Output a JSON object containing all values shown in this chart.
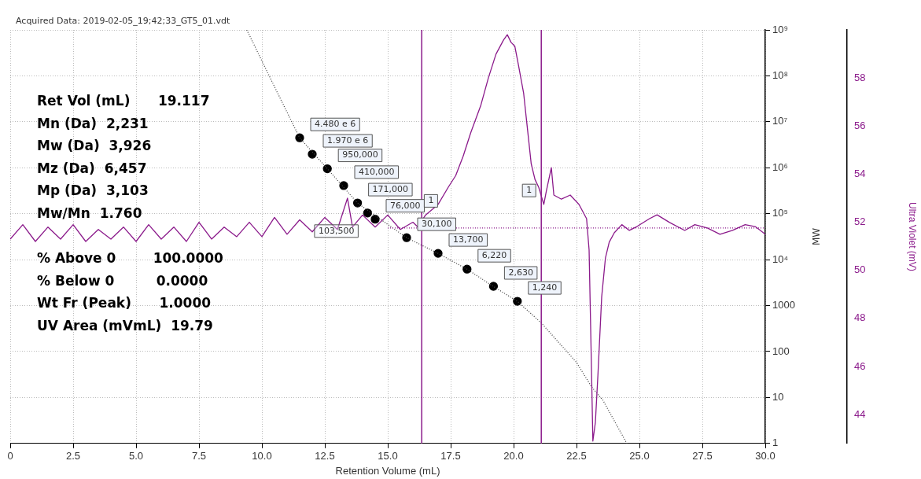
{
  "chart_data": {
    "type": "line",
    "title": "Acquired Data: 2019-02-05_19;42;33_GT5_01.vdt",
    "xlabel": "Retention Volume (mL)",
    "ylabel": "MW",
    "y2label": "Ultra Violet (mV)",
    "xlim": [
      0,
      30
    ],
    "xticks": [
      {
        "value": 0,
        "label": "0"
      },
      2.5,
      {
        "value": 5,
        "label": "5.0"
      },
      7.5,
      {
        "value": 10,
        "label": "10.0"
      },
      12.5,
      {
        "value": 15,
        "label": "15.0"
      },
      17.5,
      {
        "value": 20,
        "label": "20.0"
      },
      22.5,
      {
        "value": 25,
        "label": "25.0"
      },
      27.5,
      {
        "value": 30,
        "label": "30.0"
      }
    ],
    "ylim": [
      1,
      1000000000
    ],
    "yticks": [
      1,
      10,
      100,
      1000,
      {
        "value": 10000,
        "label": "10⁴"
      },
      {
        "value": 100000,
        "label": "10⁵"
      },
      {
        "value": 1000000,
        "label": "10⁶"
      },
      {
        "value": 10000000,
        "label": "10⁷"
      },
      {
        "value": 100000000,
        "label": "10⁸"
      },
      {
        "value": 1000000000,
        "label": "10⁹"
      }
    ],
    "y2lim": [
      42.8,
      60
    ],
    "y2ticks": [
      44,
      46,
      48,
      50,
      52,
      54,
      56,
      58
    ],
    "log": "y",
    "grid": true,
    "legend": false,
    "series": [
      {
        "type": "line",
        "axis": "y2",
        "color": "#8b1a8b",
        "marker": "none",
        "line_style": "solid",
        "x": [
          0,
          0.5,
          1,
          1.5,
          2,
          2.5,
          3,
          3.5,
          4,
          4.5,
          5,
          5.5,
          6,
          6.5,
          7,
          7.5,
          8,
          8.5,
          9,
          9.5,
          10,
          10.5,
          11,
          11.5,
          12,
          12.5,
          13,
          13.4,
          13.6,
          14,
          14.5,
          15,
          15.5,
          16,
          16.2,
          16.5,
          17,
          17.4,
          17.7,
          18,
          18.3,
          18.7,
          19,
          19.3,
          19.6,
          19.75,
          19.9,
          20.05,
          20.2,
          20.4,
          20.5,
          20.6,
          20.7,
          20.85,
          21,
          21.2,
          21.3,
          21.5,
          21.6,
          21.9,
          22.25,
          22.6,
          22.9,
          23,
          23.05,
          23.1,
          23.15,
          23.25,
          23.35,
          23.5,
          23.65,
          23.8,
          24,
          24.3,
          24.6,
          24.9,
          25.4,
          25.7,
          26.2,
          26.8,
          27.2,
          27.7,
          28.2,
          28.7,
          29.2,
          29.6,
          30
        ],
        "values": [
          51.3,
          51.9,
          51.2,
          51.8,
          51.3,
          51.9,
          51.2,
          51.7,
          51.3,
          51.8,
          51.2,
          51.9,
          51.3,
          51.8,
          51.2,
          52.0,
          51.3,
          51.8,
          51.4,
          52.0,
          51.4,
          52.2,
          51.5,
          52.1,
          51.6,
          52.2,
          51.7,
          53.0,
          51.8,
          52.3,
          51.8,
          52.3,
          51.7,
          52.0,
          51.8,
          52.3,
          52.74,
          53.45,
          53.94,
          54.76,
          55.73,
          56.87,
          58.01,
          58.99,
          59.58,
          59.8,
          59.48,
          59.32,
          58.5,
          57.36,
          56.38,
          55.41,
          54.43,
          53.78,
          53.45,
          52.74,
          53.29,
          54.27,
          53.13,
          52.96,
          53.13,
          52.74,
          52.15,
          50.85,
          48.24,
          45.63,
          42.9,
          43.68,
          45.63,
          48.89,
          50.52,
          51.17,
          51.56,
          51.9,
          51.66,
          51.82,
          52.15,
          52.31,
          51.99,
          51.66,
          51.9,
          51.76,
          51.5,
          51.66,
          51.9,
          51.82,
          51.5
        ]
      },
      {
        "type": "line",
        "axis": "y2",
        "color": "#8b1a8b",
        "marker": "none",
        "line_style": "dotted",
        "x": [
          15,
          30
        ],
        "values": [
          51.76,
          51.76
        ]
      },
      {
        "type": "line",
        "color": "#444444",
        "marker": "none",
        "line_style": "dotted",
        "x": [
          9.4,
          10.5,
          11.5,
          12.6,
          13.8,
          15.75,
          17.0,
          18.15,
          19.2,
          20.15,
          21.1,
          22.5,
          23.1,
          23.55,
          24.5
        ],
        "values": [
          1000000000,
          58000000,
          4480000,
          950000,
          170000,
          30000,
          13700,
          6200,
          2600,
          1240,
          420,
          58,
          17,
          8.7,
          1
        ]
      },
      {
        "type": "scatter",
        "color": "#000000",
        "marker": "circle",
        "x": [
          11.5,
          12.0,
          12.6,
          13.25,
          13.8,
          14.2,
          14.5,
          15.75,
          17.0,
          18.15,
          19.2,
          20.15
        ],
        "values": [
          4480000,
          1970000,
          950000,
          410000,
          171000,
          103500,
          76000,
          30100,
          13700,
          6220,
          2630,
          1240
        ],
        "value_labels": [
          "4.480 e 6",
          "1.970 e 6",
          "950,000",
          "410,000",
          "171,000",
          "103,500",
          "76,000",
          "30,100",
          "13,700",
          "6,220",
          "2,630",
          "1,240"
        ]
      }
    ],
    "ref_lines": [
      {
        "axis": "x",
        "value": 16.35,
        "color": "#8b1a8b"
      },
      {
        "axis": "x",
        "value": 21.1,
        "color": "#8b1a8b"
      }
    ],
    "annotations": [
      "Ret Vol (mL)      19.117",
      "Mn (Da)  2,231",
      "Mw (Da)  3,926",
      "Mz (Da)  6,457",
      "Mp (Da)  3,103",
      "Mw/Mn  1.760",
      "% Above 0        100.0000",
      "% Below 0         0.0000",
      "Wt Fr (Peak)      1.0000",
      "UV Area (mVmL)  19.79",
      {
        "text": "1",
        "x": 16.7,
        "y": 190000
      },
      {
        "text": "1",
        "x": 20.6,
        "y": 320000
      }
    ]
  }
}
